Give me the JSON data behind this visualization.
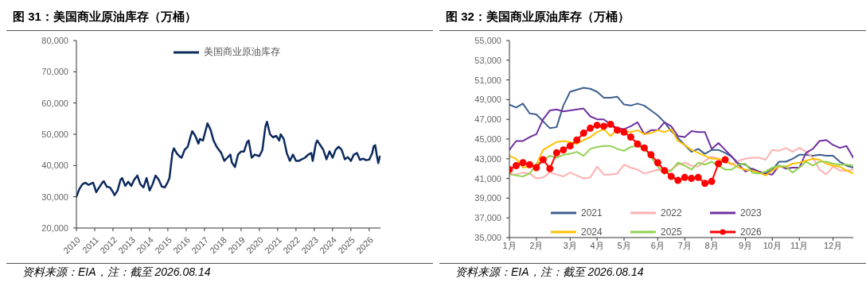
{
  "chart_data": [
    {
      "type": "line",
      "title": "图 31：美国商业原油库存（万桶）",
      "annotations": [
        "资料来源：EIA，注：截至 2026.08.14"
      ],
      "x": [
        "2010-01",
        "2010-03",
        "2010-05",
        "2010-07",
        "2010-09",
        "2010-12",
        "2011-02",
        "2011-04",
        "2011-06",
        "2011-07",
        "2011-09",
        "2011-11",
        "2012-01",
        "2012-02",
        "2012-04",
        "2012-06",
        "2012-07",
        "2012-09",
        "2012-11",
        "2013-01",
        "2013-03",
        "2013-05",
        "2013-07",
        "2013-09",
        "2013-11",
        "2014-01",
        "2014-03",
        "2014-05",
        "2014-07",
        "2014-09",
        "2014-11",
        "2015-01",
        "2015-02",
        "2015-04",
        "2015-05",
        "2015-07",
        "2015-09",
        "2015-10",
        "2015-12",
        "2016-02",
        "2016-04",
        "2016-05",
        "2016-07",
        "2016-09",
        "2016-10",
        "2016-12",
        "2017-03",
        "2017-05",
        "2017-07",
        "2017-09",
        "2017-12",
        "2018-02",
        "2018-04",
        "2018-06",
        "2018-07",
        "2018-09",
        "2018-11",
        "2019-01",
        "2019-03",
        "2019-05",
        "2019-06",
        "2019-08",
        "2019-10",
        "2020-01",
        "2020-03",
        "2020-05",
        "2020-06",
        "2020-08",
        "2020-10",
        "2020-12",
        "2021-02",
        "2021-03",
        "2021-05",
        "2021-07",
        "2021-09",
        "2021-11",
        "2022-01",
        "2022-03",
        "2022-05",
        "2022-07",
        "2022-09",
        "2022-11",
        "2022-12",
        "2023-02",
        "2023-03",
        "2023-05",
        "2023-07",
        "2023-09",
        "2023-11",
        "2024-01",
        "2024-03",
        "2024-05",
        "2024-07",
        "2024-09",
        "2024-11",
        "2025-01",
        "2025-03",
        "2025-05",
        "2025-07",
        "2025-09",
        "2025-11",
        "2026-01",
        "2026-03",
        "2026-04",
        "2026-05",
        "2026-06",
        "2026-07",
        "2026-08"
      ],
      "series": [
        {
          "name": "美国商业原油库存",
          "color": "#0b2a5c",
          "values": [
            30000,
            32500,
            34000,
            34500,
            33800,
            34500,
            31500,
            33000,
            34500,
            35000,
            33200,
            33000,
            31500,
            30500,
            32000,
            35500,
            36000,
            33500,
            34800,
            33500,
            35500,
            36800,
            34000,
            33000,
            36000,
            32000,
            34000,
            36800,
            35500,
            33300,
            33000,
            34800,
            36000,
            44000,
            45500,
            43800,
            42800,
            42500,
            45000,
            46000,
            49500,
            51000,
            49500,
            47000,
            48500,
            48000,
            53500,
            51500,
            48000,
            46000,
            44000,
            41500,
            42500,
            43500,
            41000,
            39500,
            43500,
            44500,
            44500,
            47500,
            48000,
            42500,
            43500,
            43000,
            45000,
            52500,
            54000,
            50000,
            49000,
            49500,
            48000,
            50000,
            48500,
            44000,
            41500,
            43500,
            41500,
            41500,
            42000,
            42500,
            43500,
            44000,
            41500,
            47000,
            48000,
            46500,
            45000,
            42000,
            44500,
            42500,
            45000,
            46000,
            45000,
            42000,
            42700,
            41500,
            43500,
            44000,
            41800,
            42200,
            41700,
            41900,
            43900,
            46200,
            46500,
            43400,
            40800,
            42900
          ]
        }
      ],
      "xlim": [
        "2010",
        "2026-08-14"
      ],
      "xticks": [
        "2010",
        "2011",
        "2012",
        "2013",
        "2014",
        "2015",
        "2016",
        "2017",
        "2018",
        "2019",
        "2020",
        "2021",
        "2022",
        "2023",
        "2024",
        "2025",
        "2026"
      ],
      "ylim": [
        20000,
        80000
      ],
      "yticks": [
        {
          "value": 20000,
          "label": "20,000"
        },
        {
          "value": 30000,
          "label": "30,000"
        },
        {
          "value": 40000,
          "label": "40,000"
        },
        {
          "value": 50000,
          "label": "50,000"
        },
        {
          "value": 60000,
          "label": "60,000"
        },
        {
          "value": 70000,
          "label": "70,000"
        },
        {
          "value": 80000,
          "label": "80,000"
        }
      ],
      "grid": false,
      "legend": "top",
      "marker": "none",
      "line_style": "solid"
    },
    {
      "type": "line",
      "title": "图 32：美国商业原油库存（万桶）",
      "annotations": [
        "资料来源：EIA，注：截至 2026.08.14"
      ],
      "categories": [
        "1月",
        null,
        null,
        null,
        "2月",
        null,
        null,
        null,
        null,
        "3月",
        null,
        null,
        null,
        "4月",
        null,
        null,
        null,
        "5月",
        null,
        null,
        null,
        null,
        "6月",
        null,
        null,
        null,
        "7月",
        null,
        null,
        null,
        "8月",
        null,
        null,
        null,
        null,
        "9月",
        null,
        null,
        null,
        "10月",
        null,
        null,
        null,
        "11月",
        null,
        null,
        null,
        null,
        "12月",
        null,
        null,
        null
      ],
      "series": [
        {
          "name": "2021",
          "color": "#3e5f8f",
          "marker": "none",
          "values": [
            48500,
            48200,
            48600,
            47600,
            47500,
            46800,
            46100,
            46200,
            48400,
            49800,
            50000,
            50200,
            50100,
            49800,
            49200,
            49200,
            49300,
            48500,
            48400,
            48600,
            48400,
            47900,
            47400,
            46700,
            45800,
            45100,
            44400,
            43700,
            44000,
            43500,
            43900,
            43900,
            43600,
            43200,
            42500,
            42400,
            41900,
            41700,
            41500,
            41900,
            42700,
            42700,
            43000,
            43400,
            43400,
            43300,
            43400,
            43300,
            43300,
            42700,
            42300,
            42100
          ]
        },
        {
          "name": "2022",
          "color": "#ffb0b0",
          "marker": "none",
          "values": [
            41400,
            41400,
            41600,
            41500,
            41000,
            41100,
            41600,
            41400,
            41200,
            41600,
            41300,
            41000,
            41100,
            42200,
            41400,
            41400,
            41500,
            42400,
            42100,
            41900,
            41500,
            41700,
            41900,
            41700,
            41900,
            42400,
            42600,
            42300,
            42200,
            42800,
            43200,
            43000,
            42700,
            42400,
            42800,
            43000,
            43100,
            43100,
            42900,
            43900,
            43800,
            44100,
            43700,
            44100,
            43700,
            43100,
            41900,
            41400,
            42200,
            41800,
            41800,
            41900
          ]
        },
        {
          "name": "2023",
          "color": "#7030a0",
          "marker": "none",
          "values": [
            43900,
            44800,
            44800,
            45200,
            45500,
            47000,
            47900,
            48000,
            47800,
            47900,
            48000,
            48100,
            47300,
            47000,
            47000,
            46500,
            46100,
            46000,
            46300,
            46700,
            45500,
            45900,
            45900,
            46700,
            46300,
            45300,
            45200,
            45800,
            45700,
            45700,
            44000,
            44600,
            43900,
            43200,
            42400,
            41700,
            42000,
            41700,
            41500,
            41400,
            42300,
            42000,
            42100,
            42100,
            43600,
            44000,
            44800,
            44900,
            44400,
            44100,
            44300,
            43100
          ]
        },
        {
          "name": "2024",
          "color": "#ffc000",
          "marker": "none",
          "values": [
            43300,
            43000,
            42100,
            42200,
            42400,
            43900,
            44300,
            44700,
            44800,
            44700,
            44500,
            44900,
            45200,
            45700,
            46000,
            45300,
            46000,
            45800,
            45700,
            45900,
            45500,
            45600,
            45900,
            45700,
            46000,
            44800,
            44400,
            43900,
            43600,
            43300,
            43000,
            43000,
            42700,
            42500,
            42100,
            41900,
            41800,
            41600,
            41300,
            41800,
            42200,
            42200,
            42500,
            42600,
            42800,
            43000,
            42900,
            42500,
            42300,
            42200,
            41800,
            41500
          ]
        },
        {
          "name": "2025",
          "color": "#92d050",
          "marker": "none",
          "values": [
            41500,
            41300,
            41200,
            41500,
            42400,
            42800,
            43300,
            43100,
            43400,
            43500,
            43700,
            43300,
            44000,
            44200,
            44300,
            44300,
            44000,
            43800,
            44200,
            44300,
            44000,
            43200,
            42200,
            41500,
            41800,
            42600,
            42300,
            41900,
            42600,
            42400,
            42700,
            42300,
            41900,
            41900,
            42400,
            42500,
            41600,
            41500,
            41700,
            42100,
            42300,
            42200,
            41600,
            42100,
            42700,
            42300,
            42700,
            42700,
            42500,
            42400,
            42400,
            42300
          ]
        },
        {
          "name": "2026",
          "color": "#ff0000",
          "marker": "circle",
          "values": [
            41900,
            42300,
            42600,
            42400,
            42100,
            42900,
            42000,
            43600,
            43900,
            44300,
            44900,
            45600,
            46100,
            46400,
            46300,
            46500,
            45900,
            45700,
            45200,
            44500,
            44100,
            43400,
            42600,
            41800,
            41200,
            40800,
            41100,
            41000,
            41100,
            40500,
            40700,
            42500,
            42900,
            null,
            null,
            null,
            null,
            null,
            null,
            null,
            null,
            null,
            null,
            null,
            null,
            null,
            null,
            null,
            null,
            null,
            null,
            null
          ]
        }
      ],
      "ylim": [
        35000,
        55000
      ],
      "yticks": [
        {
          "value": 35000,
          "label": "35,000"
        },
        {
          "value": 37000,
          "label": "37,000"
        },
        {
          "value": 39000,
          "label": "39,000"
        },
        {
          "value": 41000,
          "label": "41,000"
        },
        {
          "value": 43000,
          "label": "43,000"
        },
        {
          "value": 45000,
          "label": "45,000"
        },
        {
          "value": 47000,
          "label": "47,000"
        },
        {
          "value": 49000,
          "label": "49,000"
        },
        {
          "value": 51000,
          "label": "51,000"
        },
        {
          "value": 53000,
          "label": "53,000"
        },
        {
          "value": 55000,
          "label": "55,000"
        }
      ],
      "grid": false,
      "legend": "bottom",
      "line_style": "solid"
    }
  ]
}
